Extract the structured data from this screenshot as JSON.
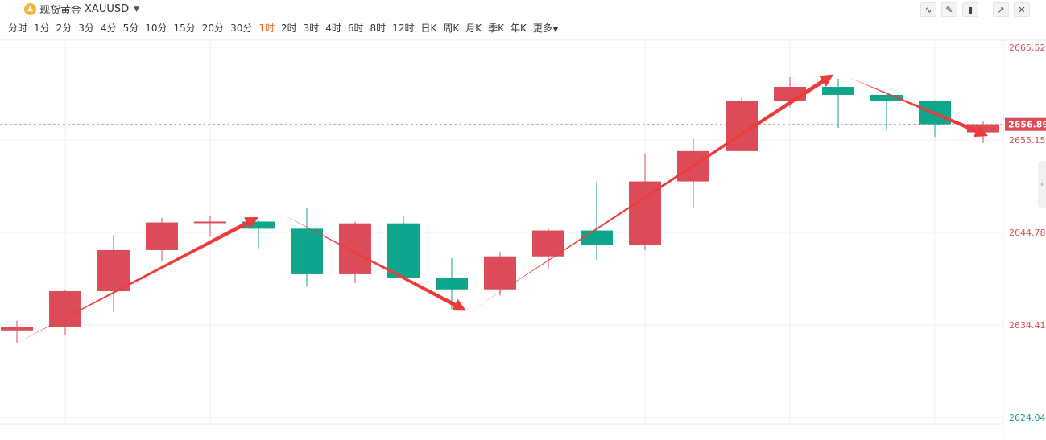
{
  "header": {
    "title": "现货黄金",
    "symbol": "XAUUSD",
    "icon": "gold-coin-icon",
    "toolbar": [
      "line-chart-icon",
      "draw-tool-icon",
      "candlestick-icon",
      "expand-icon",
      "close-icon"
    ]
  },
  "periods": [
    {
      "label": "分时"
    },
    {
      "label": "1分"
    },
    {
      "label": "2分"
    },
    {
      "label": "3分"
    },
    {
      "label": "4分"
    },
    {
      "label": "5分"
    },
    {
      "label": "10分"
    },
    {
      "label": "15分"
    },
    {
      "label": "20分"
    },
    {
      "label": "30分"
    },
    {
      "label": "1时",
      "active": true
    },
    {
      "label": "2时"
    },
    {
      "label": "3时"
    },
    {
      "label": "4时"
    },
    {
      "label": "6时"
    },
    {
      "label": "8时"
    },
    {
      "label": "12时"
    },
    {
      "label": "日K"
    },
    {
      "label": "周K"
    },
    {
      "label": "月K"
    },
    {
      "label": "季K"
    },
    {
      "label": "年K"
    },
    {
      "label": "更多"
    }
  ],
  "colors": {
    "up": "#dc4b58",
    "down": "#0da58b",
    "arrow": "#ef3a3a",
    "active": "#f06a23"
  },
  "chart_data": {
    "type": "candlestick",
    "y_axis": {
      "ticks": [
        {
          "value": 2665.52,
          "label": "2665.52",
          "color": "#dc4b58"
        },
        {
          "value": 2655.15,
          "label": "2655.15",
          "color": "#dc4b58"
        },
        {
          "value": 2644.78,
          "label": "2644.78",
          "color": "#dc4b58"
        },
        {
          "value": 2634.41,
          "label": "2634.41",
          "color": "#dc4b58"
        },
        {
          "value": 2624.04,
          "label": "2624.04",
          "color": "#0da58b"
        }
      ],
      "range": [
        2624.04,
        2665.52
      ]
    },
    "last_price": {
      "value": 2656.89,
      "label": "2656.89"
    },
    "grid": true,
    "candles": [
      {
        "open": 2633.8,
        "close": 2634.2,
        "high": 2634.9,
        "low": 2632.4
      },
      {
        "open": 2634.2,
        "close": 2638.2,
        "high": 2638.3,
        "low": 2633.3
      },
      {
        "open": 2638.2,
        "close": 2642.8,
        "high": 2644.5,
        "low": 2635.9
      },
      {
        "open": 2642.8,
        "close": 2645.9,
        "high": 2646.4,
        "low": 2641.6
      },
      {
        "open": 2645.9,
        "close": 2646.0,
        "high": 2646.6,
        "low": 2644.3
      },
      {
        "open": 2646.0,
        "close": 2645.2,
        "high": 2646.2,
        "low": 2643.0
      },
      {
        "open": 2645.2,
        "close": 2640.1,
        "high": 2647.5,
        "low": 2638.7
      },
      {
        "open": 2640.1,
        "close": 2645.8,
        "high": 2646.0,
        "low": 2639.1
      },
      {
        "open": 2645.8,
        "close": 2639.7,
        "high": 2646.6,
        "low": 2639.6
      },
      {
        "open": 2639.7,
        "close": 2638.4,
        "high": 2641.9,
        "low": 2636.2
      },
      {
        "open": 2638.4,
        "close": 2642.1,
        "high": 2642.6,
        "low": 2637.7
      },
      {
        "open": 2642.1,
        "close": 2645.0,
        "high": 2645.3,
        "low": 2640.7
      },
      {
        "open": 2645.0,
        "close": 2643.4,
        "high": 2650.5,
        "low": 2641.7
      },
      {
        "open": 2643.4,
        "close": 2650.5,
        "high": 2653.6,
        "low": 2642.8
      },
      {
        "open": 2650.5,
        "close": 2653.9,
        "high": 2655.3,
        "low": 2647.6
      },
      {
        "open": 2653.9,
        "close": 2659.5,
        "high": 2659.9,
        "low": 2653.9
      },
      {
        "open": 2659.5,
        "close": 2661.1,
        "high": 2662.2,
        "low": 2658.8
      },
      {
        "open": 2661.1,
        "close": 2660.2,
        "high": 2662.0,
        "low": 2656.5
      },
      {
        "open": 2660.2,
        "close": 2659.5,
        "high": 2660.5,
        "low": 2656.3
      },
      {
        "open": 2659.5,
        "close": 2656.9,
        "high": 2659.6,
        "low": 2655.5
      },
      {
        "open": 2656.0,
        "close": 2656.9,
        "high": 2657.2,
        "low": 2654.8
      }
    ],
    "annotations": [
      {
        "type": "arrow",
        "from": [
          0,
          2632.4
        ],
        "to": [
          5,
          2646.5
        ]
      },
      {
        "type": "arrow",
        "from": [
          5.5,
          2646.8
        ],
        "to": [
          9.3,
          2636.0
        ]
      },
      {
        "type": "arrow",
        "from": [
          9.4,
          2636.0
        ],
        "to": [
          16.9,
          2662.5
        ]
      },
      {
        "type": "arrow",
        "from": [
          17.2,
          2662.2
        ],
        "to": [
          20.1,
          2655.6
        ]
      }
    ]
  }
}
